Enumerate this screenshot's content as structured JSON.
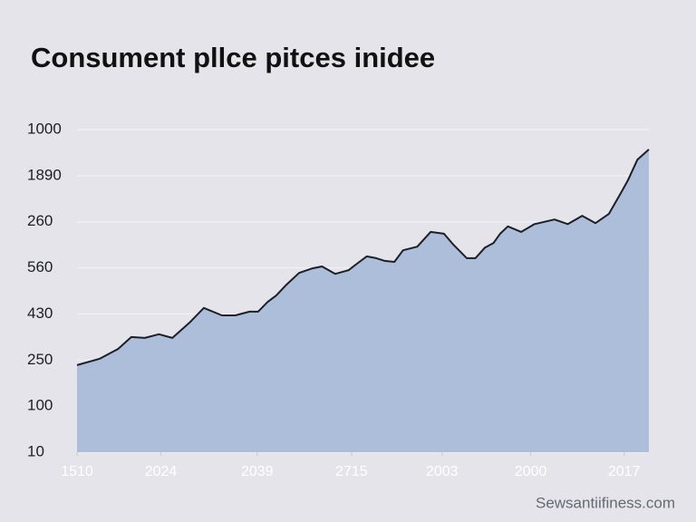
{
  "chart_data": {
    "type": "area",
    "title": "Consument pllce pitces inidee",
    "source": "Sewsantiifiness.com",
    "color": "#a9bcd9",
    "line_color": "#1c1f26",
    "grid": true,
    "x": [
      0,
      2.4,
      4.3,
      5.7,
      7.1,
      8.6,
      10,
      11.9,
      13.3,
      15.2,
      16.6,
      18.1,
      19,
      20,
      20.9,
      21.9,
      23.3,
      24.7,
      25.7,
      27.1,
      28.5,
      29.5,
      30.4,
      31.4,
      32.3,
      33.3,
      34.2,
      35.7,
      37.1,
      38.5,
      39.5,
      40.9,
      41.8,
      42.8,
      43.7,
      44.4,
      45.2,
      46.6,
      48,
      50.1,
      51.5,
      53,
      54.4,
      55.8,
      57.1,
      57.8,
      58.8,
      60
    ],
    "y": [
      1.89,
      2.03,
      2.24,
      2.5,
      2.48,
      2.56,
      2.48,
      2.83,
      3.13,
      2.97,
      2.97,
      3.05,
      3.05,
      3.26,
      3.4,
      3.62,
      3.89,
      3.99,
      4.03,
      3.87,
      3.95,
      4.11,
      4.25,
      4.21,
      4.15,
      4.13,
      4.38,
      4.46,
      4.78,
      4.74,
      4.5,
      4.21,
      4.21,
      4.44,
      4.54,
      4.74,
      4.9,
      4.78,
      4.95,
      5.05,
      4.95,
      5.13,
      4.97,
      5.17,
      5.64,
      5.9,
      6.35,
      6.57
    ],
    "xlim": [
      0,
      60
    ],
    "xticks": [
      {
        "value": 0,
        "label": "1510"
      },
      {
        "value": 8.8,
        "label": "2024"
      },
      {
        "value": 18.9,
        "label": "2039"
      },
      {
        "value": 28.8,
        "label": "2715"
      },
      {
        "value": 38.3,
        "label": "2003"
      },
      {
        "value": 47.6,
        "label": "2000"
      },
      {
        "value": 57.4,
        "label": "2017"
      }
    ],
    "ylim": [
      0,
      7
    ],
    "yticks": [
      {
        "value": 0,
        "label": "10"
      },
      {
        "value": 1,
        "label": "100"
      },
      {
        "value": 2,
        "label": "250"
      },
      {
        "value": 3,
        "label": "430"
      },
      {
        "value": 4,
        "label": "560"
      },
      {
        "value": 5,
        "label": "260"
      },
      {
        "value": 6,
        "label": "1890"
      },
      {
        "value": 7,
        "label": "1000"
      }
    ]
  }
}
